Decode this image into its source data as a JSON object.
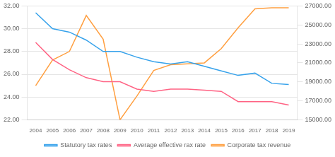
{
  "chart_data": {
    "type": "line",
    "categories": [
      "2004",
      "2005",
      "2006",
      "2007",
      "2008",
      "2009",
      "2010",
      "2011",
      "2012",
      "2013",
      "2014",
      "2015",
      "2016",
      "2017",
      "2018",
      "2019"
    ],
    "series": [
      {
        "name": "Statutory tax rates",
        "values": [
          31.4,
          30.0,
          29.7,
          29.0,
          28.0,
          28.0,
          27.5,
          27.1,
          26.9,
          27.1,
          26.7,
          26.3,
          25.9,
          26.1,
          25.2,
          25.1
        ]
      },
      {
        "name": "Average effective rax rate",
        "values": [
          28.8,
          27.3,
          26.4,
          25.7,
          25.35,
          25.35,
          24.7,
          24.5,
          24.7,
          24.7,
          24.6,
          24.5,
          23.6,
          23.6,
          23.6,
          23.3
        ]
      },
      {
        "name": "Corporate tax revenue",
        "axis": "y2",
        "values": [
          18600,
          21300,
          22200,
          26000,
          23500,
          15000,
          17500,
          20200,
          20800,
          20900,
          21000,
          22500,
          24700,
          26700,
          26800,
          26800
        ]
      }
    ],
    "ylim": [
      22.0,
      32.0
    ],
    "yticks": [
      {
        "value": 22.0,
        "label": "22.00"
      },
      {
        "value": 24.0,
        "label": "24.00"
      },
      {
        "value": 26.0,
        "label": "26.00"
      },
      {
        "value": 28.0,
        "label": "28.00"
      },
      {
        "value": 30.0,
        "label": "30.00"
      },
      {
        "value": 32.0,
        "label": "32.00"
      }
    ],
    "y2lim": [
      15000,
      27000
    ],
    "y2ticks": [
      {
        "value": 15000,
        "label": "15000.00"
      },
      {
        "value": 17000,
        "label": "17000.00"
      },
      {
        "value": 19000,
        "label": "19000.00"
      },
      {
        "value": 21000,
        "label": "21000.00"
      },
      {
        "value": 23000,
        "label": "23000.00"
      },
      {
        "value": 25000,
        "label": "25000.00"
      },
      {
        "value": 27000,
        "label": "27000.00"
      }
    ],
    "grid": true,
    "legend": "bottom"
  }
}
